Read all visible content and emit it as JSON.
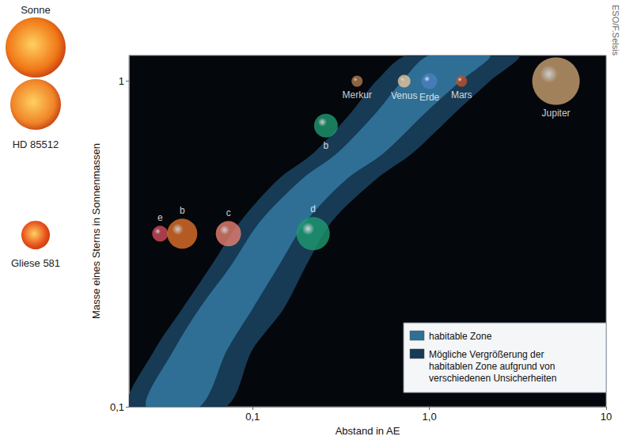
{
  "chart_data": {
    "type": "scatter",
    "x_label": "Abstand in AE",
    "y_label": "Masse eines Sterns in Sonnenmassen",
    "log": true,
    "grid": false,
    "legend": "lower right",
    "xlim": [
      0.02,
      10
    ],
    "xticks": [
      {
        "value": 0.1,
        "label": "0,1"
      },
      {
        "value": 1,
        "label": "1,0"
      },
      10
    ],
    "ylim": [
      0.1,
      1.2
    ],
    "yticks": [
      {
        "value": 0.1,
        "label": "0,1"
      },
      1
    ],
    "series": [
      {
        "name": "Sonne",
        "color": "#f07818",
        "labels": [
          "Merkur",
          "Venus",
          "Erde",
          "Mars",
          "Jupiter"
        ],
        "x": [
          0.39,
          0.72,
          1.0,
          1.52,
          5.2
        ],
        "values": [
          1.0,
          1.0,
          1.0,
          1.0,
          1.0
        ],
        "sizes": [
          14,
          16,
          20,
          14,
          60
        ],
        "colors": [
          "#b07a4a",
          "#e6c49a",
          "#4a7fc0",
          "#c0502a",
          "#c8a070"
        ]
      },
      {
        "name": "HD 85512",
        "color": "#f08428",
        "labels": [
          "b"
        ],
        "x": [
          0.26
        ],
        "values": [
          0.73
        ],
        "sizes": [
          30
        ],
        "colors": [
          "#1e9a70"
        ]
      },
      {
        "name": "Gliese 581",
        "color": "#e8501a",
        "labels": [
          "e",
          "b",
          "c",
          "d"
        ],
        "x": [
          0.03,
          0.04,
          0.073,
          0.22
        ],
        "values": [
          0.34,
          0.34,
          0.34,
          0.34
        ],
        "sizes": [
          20,
          38,
          32,
          42
        ],
        "colors": [
          "#d04a5a",
          "#e0702a",
          "#e88070",
          "#1e9a70"
        ]
      }
    ],
    "zones": [
      {
        "name": "habitable Zone",
        "color": "#2f6f95",
        "mass": [
          0.1,
          0.15,
          0.2,
          0.27,
          0.37,
          0.5,
          0.6,
          0.8,
          1.0,
          1.2
        ],
        "inner": [
          0.025,
          0.036,
          0.05,
          0.075,
          0.11,
          0.19,
          0.3,
          0.5,
          0.7,
          1.0
        ],
        "outer": [
          0.05,
          0.072,
          0.1,
          0.14,
          0.2,
          0.34,
          0.55,
          0.95,
          1.5,
          2.2
        ]
      },
      {
        "name": "Mögliche Vergrößerung der habitablen Zone aufgrund von verschiedenen Unsicherheiten",
        "color": "#173a55",
        "mass": [
          0.1,
          0.15,
          0.2,
          0.27,
          0.37,
          0.5,
          0.6,
          0.8,
          1.0,
          1.2
        ],
        "inner": [
          0.02,
          0.028,
          0.04,
          0.058,
          0.085,
          0.14,
          0.22,
          0.36,
          0.5,
          0.75
        ],
        "outer": [
          0.07,
          0.1,
          0.15,
          0.2,
          0.28,
          0.5,
          0.8,
          1.4,
          2.2,
          3.2
        ]
      }
    ],
    "credit": "ESO/F.Selsis"
  }
}
